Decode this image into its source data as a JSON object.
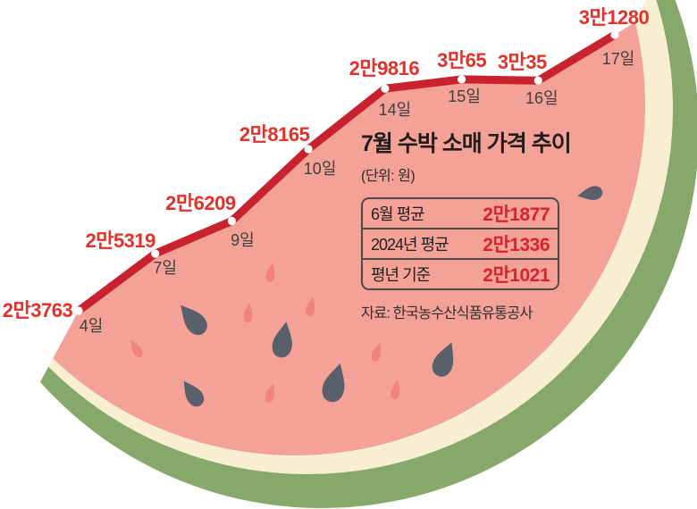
{
  "chart_data": {
    "type": "line",
    "title": "7월 수박 소매 가격 추이",
    "unit_label": "(단위: 원)",
    "x_tick_labels": [
      "4일",
      "7일",
      "9일",
      "10일",
      "14일",
      "15일",
      "16일",
      "17일"
    ],
    "values": [
      23763,
      25319,
      26209,
      28165,
      29816,
      30065,
      30035,
      31280
    ],
    "value_labels": [
      "2만3763",
      "2만5319",
      "2만6209",
      "2만8165",
      "2만9816",
      "3만65",
      "3만35",
      "3만1280"
    ],
    "ylim": [
      23763,
      31280
    ],
    "grid": false,
    "legend": "none",
    "reference_table": {
      "rows": [
        {
          "label": "6월 평균",
          "value": "2만1877"
        },
        {
          "label": "2024년 평균",
          "value": "2만1336"
        },
        {
          "label": "평년 기준",
          "value": "2만1021"
        }
      ]
    },
    "source": "자료: 한국농수산식품유통공사",
    "colors": {
      "trend_line": "#c9222f",
      "point_dot": "#ffffff",
      "value_label": "#e23129",
      "day_label": "#3f3f3f",
      "flesh": "#f4a197",
      "rind_cream": "#f8efd2",
      "rind_green": "#87a86b",
      "seed_dark": "#5a606b",
      "seed_pink": "#f0837d",
      "table_value": "#d8232a",
      "background": "#ffffff"
    }
  }
}
